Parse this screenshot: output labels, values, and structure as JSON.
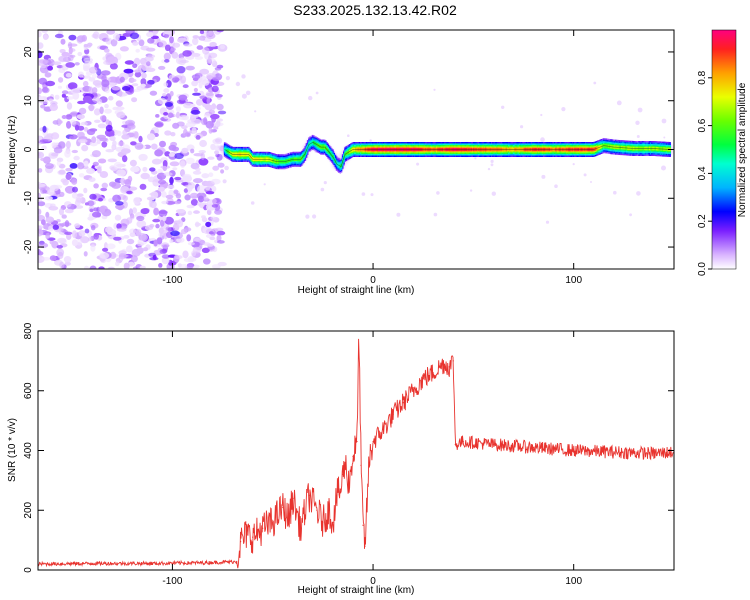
{
  "page_title": "S233.2025.132.13.42.R02",
  "chart_data": [
    {
      "type": "heatmap",
      "xlabel": "Height of straight line (km)",
      "ylabel": "Frequency (Hz)",
      "xlim": [
        -167,
        150
      ],
      "ylim": [
        -24.5,
        24.5
      ],
      "xticks": [
        -100,
        0,
        100
      ],
      "xtick_labels": [
        "-100",
        "0",
        "100"
      ],
      "yticks": [
        -20,
        -10,
        0,
        10,
        20
      ],
      "ytick_labels": [
        "-20",
        "-10",
        "0",
        "10",
        "20"
      ],
      "noise_region_x": [
        -167,
        -75
      ],
      "ridge_x": [
        -74,
        -72,
        -70,
        -66,
        -62,
        -60,
        -56,
        -52,
        -48,
        -44,
        -40,
        -36,
        -34,
        -32,
        -30,
        -28,
        -26,
        -24,
        -22,
        -20,
        -18,
        -16,
        -14,
        -10,
        -5,
        0,
        10,
        20,
        30,
        40,
        50,
        60,
        70,
        80,
        90,
        100,
        110,
        115,
        120,
        130,
        140,
        148
      ],
      "ridge_freq": [
        0.0,
        -0.5,
        -1.0,
        -1.0,
        -1.0,
        -2.0,
        -2.0,
        -2.0,
        -2.5,
        -2.5,
        -2.0,
        -2.0,
        -1.0,
        1.0,
        1.5,
        1.0,
        0.5,
        0.5,
        -0.5,
        -1.5,
        -3.0,
        -3.5,
        -1.0,
        0.0,
        0.0,
        0.0,
        0.0,
        0.0,
        0.0,
        0.0,
        0.0,
        0.0,
        0.0,
        0.0,
        0.0,
        0.0,
        0.0,
        0.8,
        0.5,
        0.2,
        0.2,
        0.0
      ],
      "ridge_amplitude": [
        0.45,
        0.6,
        0.7,
        0.75,
        0.72,
        0.7,
        0.72,
        0.7,
        0.6,
        0.55,
        0.55,
        0.6,
        0.5,
        0.45,
        0.5,
        0.55,
        0.6,
        0.6,
        0.55,
        0.5,
        0.45,
        0.5,
        0.55,
        0.75,
        0.85,
        0.95,
        0.95,
        0.95,
        0.85,
        0.95,
        0.9,
        0.85,
        0.8,
        0.9,
        0.85,
        0.9,
        0.9,
        0.6,
        0.65,
        0.65,
        0.65,
        0.65
      ],
      "colorbar": {
        "label": "Normalized spectral amplitude",
        "range": [
          0,
          1
        ],
        "ticks": [
          0.0,
          0.2,
          0.4,
          0.6,
          0.8
        ],
        "tick_labels": [
          "0.0",
          "0.2",
          "0.4",
          "0.6",
          "0.8"
        ]
      },
      "grid": false
    },
    {
      "type": "line",
      "xlabel": "Height of straight line (km)",
      "ylabel": "SNR (10 * v/v)",
      "xlim": [
        -167,
        150
      ],
      "ylim": [
        0,
        800
      ],
      "xticks": [
        -100,
        0,
        100
      ],
      "xtick_labels": [
        "-100",
        "0",
        "100"
      ],
      "yticks": [
        0,
        200,
        400,
        600,
        800
      ],
      "ytick_labels": [
        "0",
        "200",
        "400",
        "600",
        "800"
      ],
      "series_color": "#e8332e",
      "series": [
        {
          "x": [
            -167,
            -140,
            -110,
            -80,
            -68,
            -66,
            -63,
            -60,
            -55,
            -50,
            -45,
            -42,
            -40,
            -36,
            -32,
            -28,
            -25,
            -22,
            -20,
            -18,
            -16,
            -15,
            -14,
            -12,
            -10,
            -8,
            -7,
            -6,
            -5,
            -4,
            -2,
            0,
            5,
            10,
            15,
            20,
            25,
            30,
            35,
            38,
            40,
            41,
            45,
            60,
            80,
            100,
            120,
            140,
            150
          ],
          "y": [
            20,
            22,
            22,
            25,
            28,
            95,
            120,
            110,
            140,
            160,
            210,
            170,
            240,
            140,
            250,
            200,
            160,
            200,
            160,
            250,
            270,
            320,
            360,
            290,
            380,
            430,
            800,
            350,
            150,
            80,
            360,
            430,
            470,
            520,
            560,
            600,
            640,
            660,
            690,
            680,
            700,
            420,
            430,
            420,
            410,
            400,
            395,
            390,
            395
          ]
        }
      ],
      "grid": false
    }
  ]
}
